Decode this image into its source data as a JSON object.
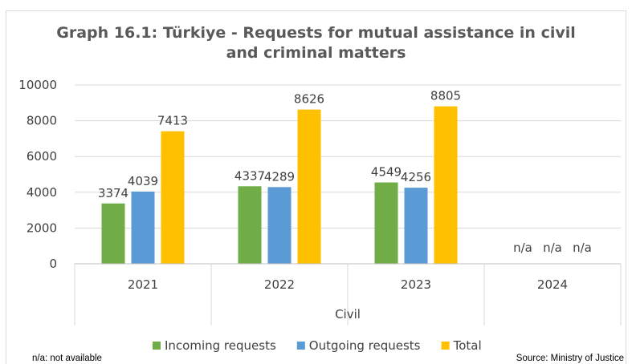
{
  "chart_data": {
    "type": "bar",
    "title_lines": [
      "Graph 16.1: Türkiye - Requests for mutual assistance in civil",
      "and criminal matters"
    ],
    "group_label": "Civil",
    "categories": [
      "2021",
      "2022",
      "2023",
      "2024"
    ],
    "series": [
      {
        "name": "Incoming requests",
        "color": "#70ad47",
        "values": [
          3374,
          4337,
          4549,
          null
        ],
        "labels": [
          "3374",
          "4337",
          "4549",
          "n/a"
        ]
      },
      {
        "name": "Outgoing requests",
        "color": "#5b9bd5",
        "values": [
          4039,
          4289,
          4256,
          null
        ],
        "labels": [
          "4039",
          "4289",
          "4256",
          "n/a"
        ]
      },
      {
        "name": "Total",
        "color": "#ffc000",
        "values": [
          7413,
          8626,
          8805,
          null
        ],
        "labels": [
          "7413",
          "8626",
          "8805",
          "n/a"
        ]
      }
    ],
    "ylim": [
      0,
      10000
    ],
    "yticks": [
      "0",
      "2000",
      "4000",
      "6000",
      "8000",
      "10000"
    ],
    "grid": true,
    "legend_position": "bottom"
  },
  "footnote": "n/a: not available",
  "source": "Source: Ministry of Justice"
}
